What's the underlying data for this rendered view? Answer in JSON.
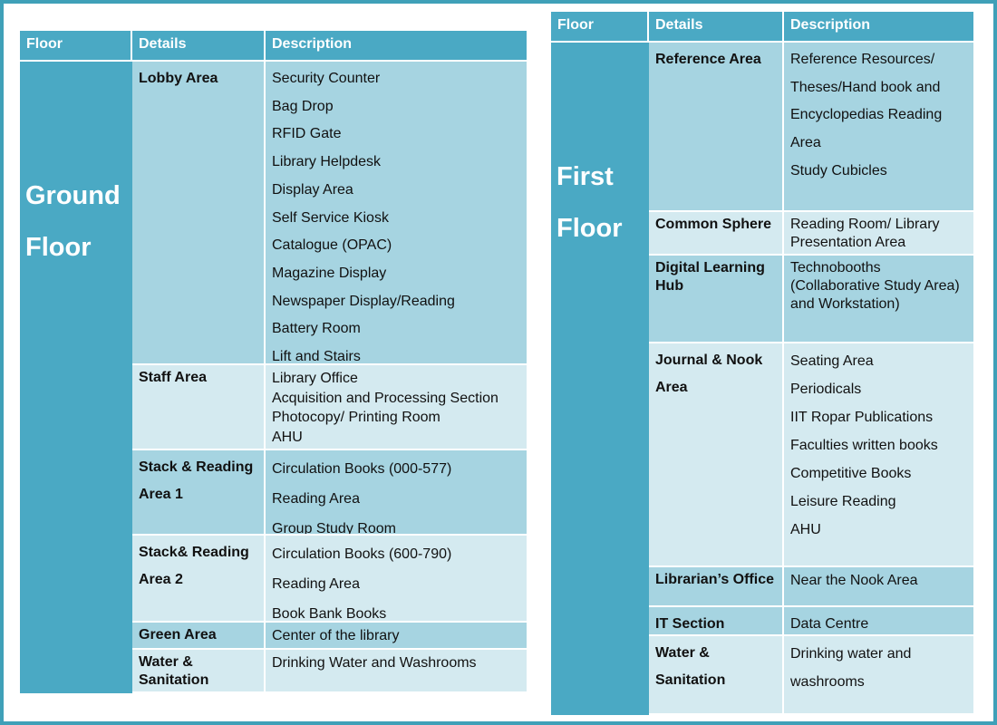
{
  "tables": [
    {
      "header": [
        "Floor",
        "Details",
        "Description"
      ],
      "floor": "Ground Floor",
      "rows": [
        {
          "details": "Lobby Area",
          "items": [
            "Security Counter",
            "Bag Drop",
            "RFID Gate",
            "Library Helpdesk",
            "Display Area",
            "Self Service Kiosk",
            "Catalogue (OPAC)",
            "Magazine Display",
            "Newspaper Display/Reading",
            "Battery Room",
            "Lift and Stairs"
          ]
        },
        {
          "details": "Staff Area",
          "items": [
            "Library Office",
            "Acquisition and Processing Section",
            "Photocopy/ Printing Room",
            "AHU"
          ]
        },
        {
          "details": "Stack & Reading Area 1",
          "items": [
            "Circulation Books (000-577)",
            "Reading Area",
            "Group Study Room"
          ]
        },
        {
          "details": "Stack& Reading Area 2",
          "items": [
            "Circulation Books (600-790)",
            "Reading Area",
            "Book Bank Books"
          ]
        },
        {
          "details": "Green Area",
          "items": [
            "Center of the library"
          ]
        },
        {
          "details": "Water & Sanitation",
          "items": [
            "Drinking Water and Washrooms"
          ]
        }
      ]
    },
    {
      "header": [
        "Floor",
        "Details",
        "Description"
      ],
      "floor": "First Floor",
      "rows": [
        {
          "details": "Reference Area",
          "items": [
            "Reference Resources/ Theses/Hand book and Encyclopedias Reading Area",
            "Study Cubicles"
          ]
        },
        {
          "details": "Common Sphere",
          "items": [
            "Reading Room/ Library Presentation Area"
          ]
        },
        {
          "details": "Digital Learning Hub",
          "items": [
            "Technobooths (Collaborative Study Area) and Workstation)"
          ]
        },
        {
          "details": "Journal & Nook Area",
          "items": [
            "Seating Area",
            "Periodicals",
            "IIT Ropar Publications",
            "Faculties written books",
            "Competitive Books",
            "Leisure Reading",
            "AHU"
          ]
        },
        {
          "details": "Librarian’s Office",
          "items": [
            "Near the Nook Area"
          ]
        },
        {
          "details": "IT Section",
          "items": [
            "Data Centre"
          ]
        },
        {
          "details": "Water & Sanitation",
          "items": [
            "Drinking water and washrooms"
          ]
        }
      ]
    }
  ]
}
